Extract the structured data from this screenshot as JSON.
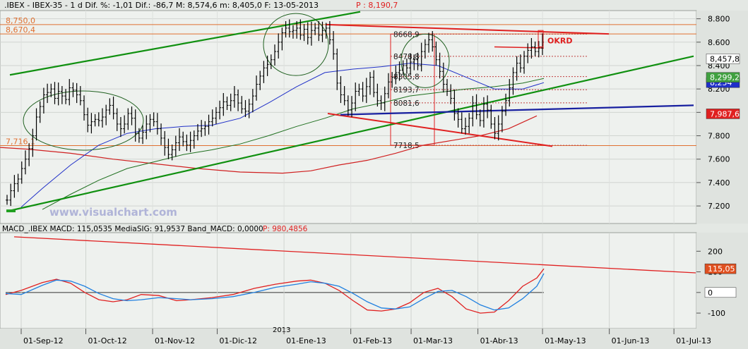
{
  "chart_data": [
    {
      "type": "candlestick",
      "header": {
        "symbol": ".IBEX - IBEX-35 - 1 d Dif. %: -1,01 Dif.: -86,7 M: 8,574,6 m: 8,405,0 F: 13-05-2013",
        "p_label": "P : 8,190,7"
      },
      "y_ticks": [
        "8.800",
        "8.600",
        "8.400",
        "8.200",
        "8.000",
        "7.800",
        "7.600",
        "7.400",
        "7.200"
      ],
      "y_tick_values": [
        8800,
        8600,
        8400,
        8200,
        8000,
        7800,
        7600,
        7400,
        7200
      ],
      "ylim": [
        7050,
        8870
      ],
      "watermark": "www.visualchart.com",
      "price_labels": [
        {
          "text": "8,457,8",
          "value": 8457.8,
          "bg": "#ffffff",
          "fg": "#000000"
        },
        {
          "text": "8,254",
          "value": 8254,
          "bg": "#2030c8",
          "fg": "#ffffff"
        },
        {
          "text": "7,987,6",
          "value": 7987.6,
          "bg": "#e02020",
          "fg": "#ffffff"
        },
        {
          "text": "8,299,2",
          "value": 8299.2,
          "bg": "#40a040",
          "fg": "#ffffff"
        }
      ],
      "left_levels": [
        {
          "text": "8,750,0",
          "value": 8750
        },
        {
          "text": "8,670,4",
          "value": 8670.4
        },
        {
          "text": "7,716,1",
          "value": 7716.1
        }
      ],
      "fib_levels": [
        {
          "text": "8668,9",
          "value": 8668.9
        },
        {
          "text": "8478,8",
          "value": 8478.8
        },
        {
          "text": "8305,8",
          "value": 8305.8
        },
        {
          "text": "8193,7",
          "value": 8193.7
        },
        {
          "text": "8081,6",
          "value": 8081.6
        },
        {
          "text": "7718,5",
          "value": 7718.5
        }
      ],
      "annotation": "OKRD",
      "colors": {
        "up_channel": "#109010",
        "down_channel": "#e02020",
        "support": "#1820a0",
        "ma_blue": "#2030c8",
        "ma_green": "#207020",
        "ma_red": "#d02020",
        "levels": "#e07030"
      },
      "grid": true
    },
    {
      "type": "line",
      "header": {
        "text": "MACD_.IBEX MACD: 115,0535 MediaSIG: 91,9537 Band_MACD: 0,0000",
        "p_label": "P: 980,4856"
      },
      "y_ticks": [
        "200",
        "100",
        "0",
        "-100"
      ],
      "y_tick_values": [
        200,
        100,
        0,
        -100
      ],
      "ylim": [
        -175,
        290
      ],
      "value_labels": [
        {
          "text": "115,05",
          "value": 115.05,
          "bg": "#e05020"
        },
        {
          "text": "0",
          "value": 0,
          "bg": "#ffffff"
        }
      ],
      "series": [
        {
          "name": "MACD",
          "color": "#e02020"
        },
        {
          "name": "MediaSIG",
          "color": "#2080e0"
        }
      ],
      "x_labels": [
        "01-Sep-12",
        "01-Oct-12",
        "01-Nov-12",
        "01-Dic-12",
        "01-Ene-13",
        "01-Feb-13",
        "01-Mar-13",
        "01-Abr-13",
        "01-May-13",
        "01-Jun-13",
        "01-Jul-13"
      ],
      "year_label": "2013",
      "grid": true
    }
  ]
}
